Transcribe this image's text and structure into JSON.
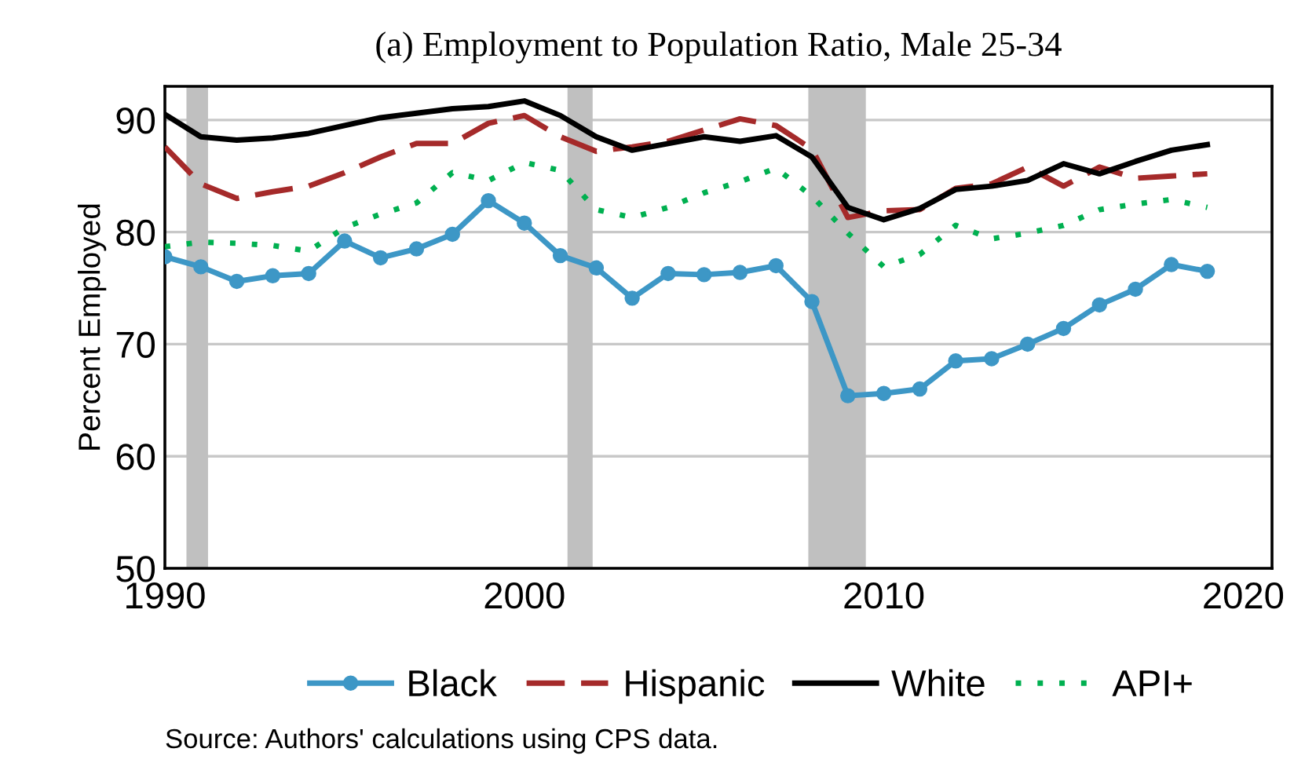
{
  "chart_data": {
    "type": "line",
    "title": "(a) Employment to Population Ratio, Male 25-34",
    "ylabel": "Percent Employed",
    "x": [
      1990,
      1991,
      1992,
      1993,
      1994,
      1995,
      1996,
      1997,
      1998,
      1999,
      2000,
      2001,
      2002,
      2003,
      2004,
      2005,
      2006,
      2007,
      2008,
      2009,
      2010,
      2011,
      2012,
      2013,
      2014,
      2015,
      2016,
      2017,
      2018,
      2019
    ],
    "series": [
      {
        "name": "Black",
        "color": "#3d97c6",
        "marker": "circle",
        "line_style": "solid",
        "values": [
          77.8,
          76.9,
          75.6,
          76.1,
          76.3,
          79.2,
          77.7,
          78.5,
          79.8,
          82.8,
          80.8,
          77.9,
          76.8,
          74.1,
          76.3,
          76.2,
          76.4,
          77.0,
          73.8,
          65.4,
          65.6,
          66.0,
          68.5,
          68.7,
          70.0,
          71.4,
          73.5,
          74.9,
          77.1,
          76.5
        ]
      },
      {
        "name": "Hispanic",
        "color": "#a52a2a",
        "marker": "none",
        "line_style": "dashed",
        "values": [
          87.6,
          84.3,
          83.0,
          83.6,
          84.1,
          85.3,
          86.7,
          87.9,
          87.9,
          89.7,
          90.4,
          88.5,
          87.2,
          87.6,
          88.1,
          89.1,
          90.1,
          89.5,
          87.4,
          81.3,
          81.9,
          82.0,
          83.9,
          84.3,
          85.8,
          84.1,
          85.8,
          84.8,
          85.0,
          85.2
        ]
      },
      {
        "name": "White",
        "color": "#000000",
        "marker": "none",
        "line_style": "solid",
        "values": [
          90.5,
          88.5,
          88.2,
          88.4,
          88.8,
          89.5,
          90.2,
          90.6,
          91.0,
          91.2,
          91.7,
          90.4,
          88.5,
          87.3,
          87.9,
          88.5,
          88.1,
          88.6,
          86.7,
          82.2,
          81.1,
          82.1,
          83.8,
          84.1,
          84.6,
          86.1,
          85.2,
          86.3,
          87.3,
          87.8
        ]
      },
      {
        "name": "API+",
        "color": "#00b050",
        "marker": "none",
        "line_style": "dotted",
        "values": [
          78.7,
          79.1,
          79.0,
          78.8,
          78.3,
          80.4,
          81.6,
          82.6,
          85.3,
          84.6,
          86.2,
          85.5,
          82.0,
          81.3,
          82.2,
          83.5,
          84.5,
          85.7,
          83.2,
          79.9,
          76.9,
          78.0,
          80.6,
          79.4,
          79.9,
          80.6,
          82.0,
          82.5,
          82.9,
          82.2
        ]
      }
    ],
    "bands": [
      {
        "axis": "x",
        "from": 1990.6,
        "to": 1991.2,
        "color": "#c0c0c0"
      },
      {
        "axis": "x",
        "from": 2001.2,
        "to": 2001.9,
        "color": "#c0c0c0"
      },
      {
        "axis": "x",
        "from": 2007.9,
        "to": 2009.5,
        "color": "#c0c0c0"
      }
    ],
    "xlim": [
      1990,
      2020.8
    ],
    "xticks": [
      1990,
      2000,
      2010,
      2020
    ],
    "ylim": [
      50,
      93
    ],
    "yticks": [
      50,
      60,
      70,
      80,
      90
    ],
    "grid": "y",
    "legend": "bottom",
    "annotations": [
      "Source: Authors' calculations using CPS data."
    ]
  }
}
